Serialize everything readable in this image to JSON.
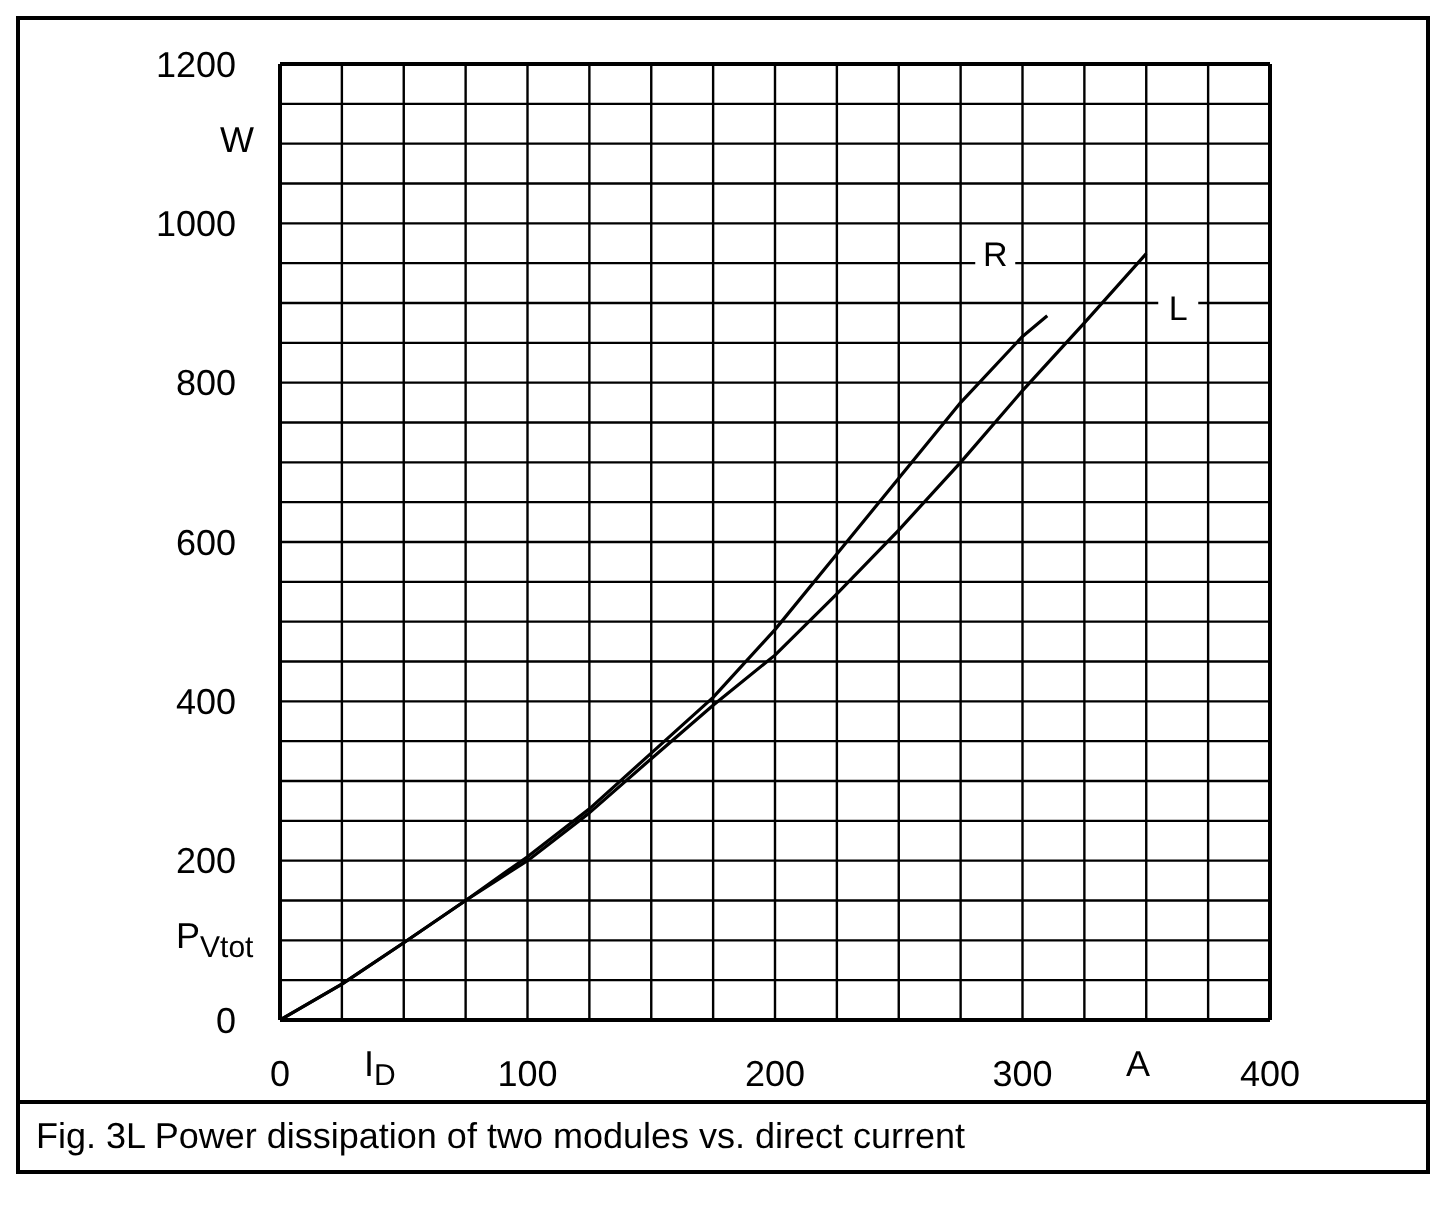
{
  "chart_data": {
    "type": "line",
    "xlabel": "I$_{D}$",
    "ylabel": "P$_{Vtot}$",
    "annotations": [
      "W",
      "A",
      "Fig. 3L Power dissipation of two modules vs. direct current"
    ],
    "series": [
      {
        "name": "R",
        "color": "#000000",
        "x": [
          0,
          25,
          50,
          75,
          100,
          125,
          150,
          175,
          200,
          225,
          250,
          275,
          300,
          310
        ],
        "values": [
          0,
          45,
          97,
          150,
          205,
          265,
          335,
          405,
          490,
          585,
          680,
          775,
          858,
          884
        ]
      },
      {
        "name": "L",
        "color": "#000000",
        "x": [
          0,
          25,
          50,
          75,
          100,
          125,
          150,
          175,
          200,
          225,
          250,
          275,
          300,
          325,
          350
        ],
        "values": [
          0,
          45,
          97,
          150,
          200,
          260,
          328,
          395,
          458,
          535,
          615,
          700,
          790,
          875,
          962
        ]
      }
    ],
    "xlim": [
      0,
      400
    ],
    "xticks": [
      0,
      {
        "value": 25,
        "label": null
      },
      {
        "value": 50,
        "label": null
      },
      {
        "value": 75,
        "label": null
      },
      100,
      {
        "value": 125,
        "label": null
      },
      {
        "value": 150,
        "label": null
      },
      {
        "value": 175,
        "label": null
      },
      200,
      {
        "value": 225,
        "label": null
      },
      {
        "value": 250,
        "label": null
      },
      {
        "value": 275,
        "label": null
      },
      300,
      {
        "value": 325,
        "label": null
      },
      {
        "value": 350,
        "label": null
      },
      {
        "value": 375,
        "label": null
      },
      400
    ],
    "ylim": [
      0,
      1200
    ],
    "yticks": [
      0,
      {
        "value": 50,
        "label": null
      },
      {
        "value": 100,
        "label": null
      },
      {
        "value": 150,
        "label": null
      },
      200,
      {
        "value": 250,
        "label": null
      },
      {
        "value": 300,
        "label": null
      },
      {
        "value": 350,
        "label": null
      },
      400,
      {
        "value": 450,
        "label": null
      },
      {
        "value": 500,
        "label": null
      },
      {
        "value": 550,
        "label": null
      },
      600,
      {
        "value": 650,
        "label": null
      },
      {
        "value": 700,
        "label": null
      },
      {
        "value": 750,
        "label": null
      },
      800,
      {
        "value": 850,
        "label": null
      },
      {
        "value": 900,
        "label": null
      },
      {
        "value": 950,
        "label": null
      },
      1000,
      {
        "value": 1050,
        "label": null
      },
      {
        "value": 1100,
        "label": null
      },
      {
        "value": 1150,
        "label": null
      },
      1200
    ],
    "grid": true,
    "legend": false,
    "marker": "none",
    "line_style": "solid"
  }
}
